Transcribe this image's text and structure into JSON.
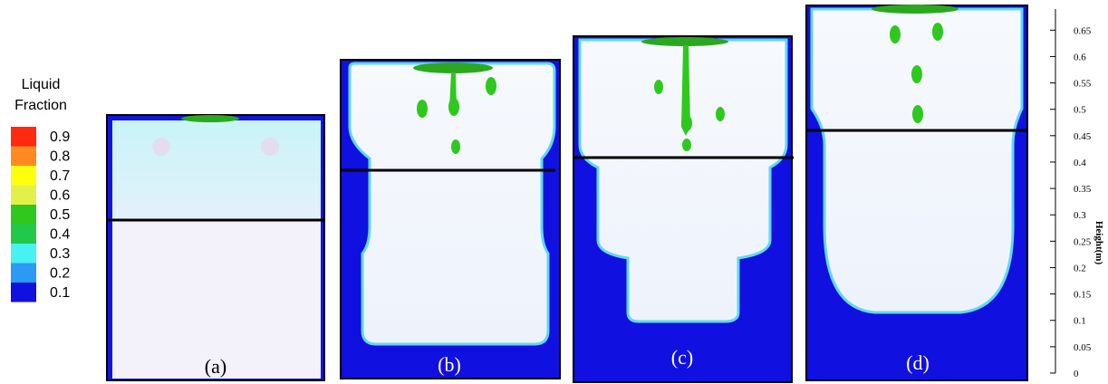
{
  "legend": {
    "title_line1": "Liquid",
    "title_line2": "Fraction",
    "entries": [
      {
        "label": 0.9,
        "color": "#ff2a10"
      },
      {
        "label": 0.8,
        "color": "#ff8a20"
      },
      {
        "label": 0.7,
        "color": "#ffff10"
      },
      {
        "label": 0.6,
        "color": "#e4f04a"
      },
      {
        "label": 0.5,
        "color": "#2ec81e"
      },
      {
        "label": 0.4,
        "color": "#22c84a"
      },
      {
        "label": 0.3,
        "color": "#48f2f0"
      },
      {
        "label": 0.2,
        "color": "#2a9af2"
      },
      {
        "label": 0.1,
        "color": "#1010e0"
      }
    ]
  },
  "panels": [
    {
      "label": "(a)"
    },
    {
      "label": "(b)"
    },
    {
      "label": "(c)"
    },
    {
      "label": "(d)"
    }
  ],
  "height_axis": {
    "label": "Height(m)",
    "lim": [
      0,
      0.69
    ],
    "ticks": [
      0,
      0.05,
      0.1,
      0.15,
      0.2,
      0.25,
      0.3,
      0.35,
      0.4,
      0.45,
      0.5,
      0.55,
      0.6,
      0.65
    ]
  }
}
